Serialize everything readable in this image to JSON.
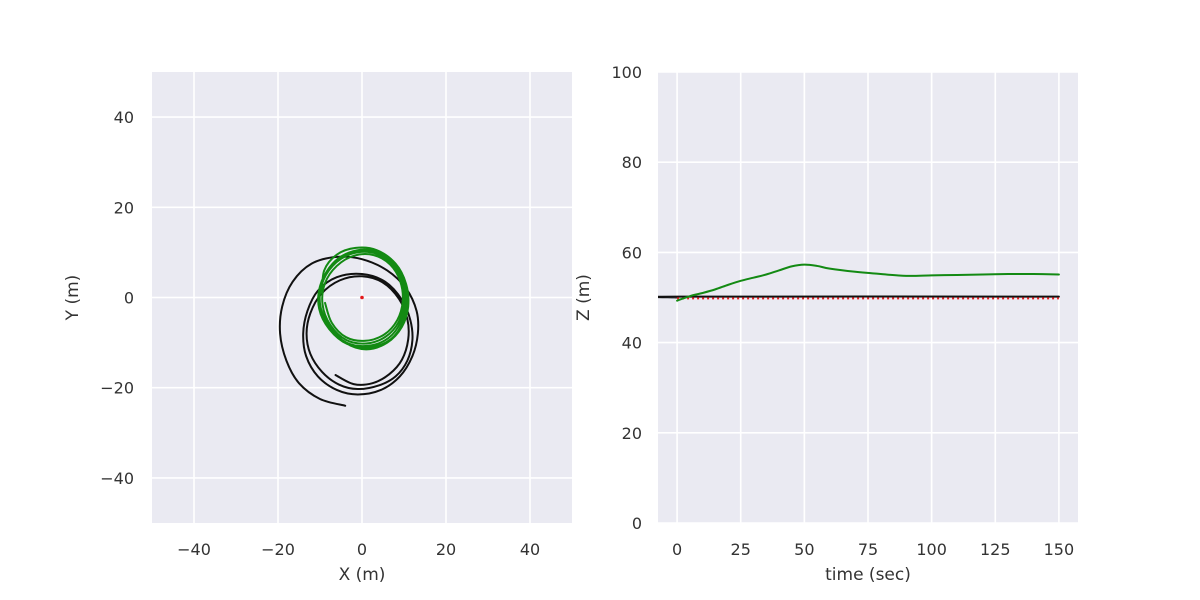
{
  "chart_data": [
    {
      "type": "line",
      "xlabel": "X (m)",
      "ylabel": "Y (m)",
      "xlim": [
        -50,
        50
      ],
      "ylim": [
        -50,
        50
      ],
      "xticks": [
        -40,
        -20,
        0,
        20,
        40
      ],
      "yticks": [
        -40,
        -20,
        0,
        20,
        40
      ],
      "x_tick_labels": [
        "−40",
        "−20",
        "0",
        "20",
        "40"
      ],
      "y_tick_labels": [
        "−40",
        "−20",
        "0",
        "20",
        "40"
      ],
      "grid": true,
      "legend": "none",
      "background_color": "#eaeaf2",
      "series": [
        {
          "color": "#111111",
          "style": "solid",
          "points": [
            [
              -4,
              -24
            ],
            [
              -10,
              -22.5
            ],
            [
              -15,
              -19
            ],
            [
              -18,
              -14
            ],
            [
              -19.5,
              -8
            ],
            [
              -19,
              -2
            ],
            [
              -16.5,
              3.5
            ],
            [
              -12,
              7.5
            ],
            [
              -6,
              9
            ],
            [
              0,
              8.5
            ],
            [
              6,
              6
            ],
            [
              10.5,
              2
            ],
            [
              13,
              -3
            ],
            [
              13.3,
              -8
            ],
            [
              12,
              -13
            ],
            [
              9,
              -17.5
            ],
            [
              4.5,
              -20.5
            ],
            [
              -1,
              -21.5
            ],
            [
              -6,
              -20.5
            ],
            [
              -10.5,
              -17.5
            ],
            [
              -13.3,
              -13
            ],
            [
              -14,
              -8
            ],
            [
              -13,
              -3
            ],
            [
              -10.5,
              1.5
            ],
            [
              -6,
              4.5
            ],
            [
              0,
              5.2
            ],
            [
              5.5,
              3.5
            ],
            [
              9.5,
              -0.5
            ],
            [
              11.5,
              -5
            ],
            [
              12,
              -9.5
            ],
            [
              10.8,
              -14
            ],
            [
              8,
              -17.5
            ],
            [
              4,
              -19.5
            ],
            [
              -1,
              -20.3
            ],
            [
              -5.5,
              -19.3
            ],
            [
              -9.5,
              -16.5
            ],
            [
              -12.3,
              -12.5
            ],
            [
              -13.2,
              -8
            ],
            [
              -12.3,
              -3.5
            ],
            [
              -9.7,
              0.8
            ],
            [
              -5.3,
              3.8
            ],
            [
              0,
              4.7
            ],
            [
              5,
              3.3
            ],
            [
              8.8,
              -0.3
            ],
            [
              10.8,
              -4.8
            ],
            [
              11,
              -9.3
            ],
            [
              9.5,
              -13.8
            ],
            [
              6.5,
              -17
            ],
            [
              2.5,
              -19
            ],
            [
              -2,
              -19.2
            ],
            [
              -6.3,
              -17.2
            ]
          ]
        },
        {
          "color": "#138a13",
          "style": "solid",
          "points": [
            [
              -9.5,
              0.8
            ],
            [
              -9,
              6
            ],
            [
              -6,
              9.5
            ],
            [
              -1.5,
              11
            ],
            [
              3.5,
              10.5
            ],
            [
              8,
              7.5
            ],
            [
              10.5,
              3
            ],
            [
              11,
              -2
            ],
            [
              9.5,
              -6.5
            ],
            [
              6,
              -10
            ],
            [
              1,
              -11.5
            ],
            [
              -4,
              -10
            ],
            [
              -8,
              -6
            ],
            [
              -10,
              -1.5
            ],
            [
              -9.5,
              3.5
            ],
            [
              -7,
              7.5
            ],
            [
              -3,
              10
            ],
            [
              2,
              10.5
            ],
            [
              6.5,
              8.5
            ],
            [
              9.5,
              4.5
            ],
            [
              10.7,
              -0.5
            ],
            [
              9.7,
              -5.5
            ],
            [
              6.8,
              -9.3
            ],
            [
              2,
              -11
            ],
            [
              -3.5,
              -10.3
            ],
            [
              -7.8,
              -7
            ],
            [
              -10.2,
              -2.5
            ],
            [
              -10,
              2.5
            ],
            [
              -7.5,
              6.8
            ],
            [
              -3.5,
              9.5
            ],
            [
              1.5,
              10.2
            ],
            [
              6.3,
              8.3
            ],
            [
              9.4,
              4.2
            ],
            [
              10.4,
              -0.5
            ],
            [
              9.3,
              -5.3
            ],
            [
              6.3,
              -9
            ],
            [
              1.5,
              -10.7
            ],
            [
              -3.7,
              -10
            ],
            [
              -7.8,
              -6.5
            ],
            [
              -9.9,
              -2
            ],
            [
              -9.6,
              2.8
            ],
            [
              -7,
              7
            ],
            [
              -2.8,
              9.6
            ],
            [
              2.2,
              10
            ],
            [
              6.5,
              8
            ],
            [
              9.3,
              4
            ],
            [
              10,
              -0.7
            ],
            [
              8.8,
              -5.3
            ],
            [
              5.6,
              -8.7
            ],
            [
              1,
              -10.2
            ],
            [
              -3.8,
              -9.4
            ],
            [
              -7.6,
              -6
            ],
            [
              -9.4,
              -1.5
            ],
            [
              -8.8,
              3.2
            ],
            [
              -6,
              7
            ],
            [
              -1.8,
              9.3
            ],
            [
              2.8,
              9.4
            ],
            [
              6.7,
              7.3
            ],
            [
              9.1,
              3.6
            ],
            [
              9.7,
              -0.8
            ],
            [
              8.4,
              -5
            ],
            [
              5.3,
              -8.2
            ],
            [
              0.8,
              -9.6
            ],
            [
              -3.8,
              -8.8
            ],
            [
              -7.2,
              -5.6
            ],
            [
              -8.8,
              -1.2
            ]
          ]
        }
      ],
      "markers": [
        {
          "x": 0,
          "y": 0,
          "color": "#e41a1c",
          "shape": "point"
        }
      ]
    },
    {
      "type": "line",
      "xlabel": "time (sec)",
      "ylabel": "Z (m)",
      "xlim": [
        -7.5,
        157.5
      ],
      "ylim": [
        0,
        100
      ],
      "xticks": [
        0,
        25,
        50,
        75,
        100,
        125,
        150
      ],
      "yticks": [
        0,
        20,
        40,
        60,
        80,
        100
      ],
      "x_tick_labels": [
        "0",
        "25",
        "50",
        "75",
        "100",
        "125",
        "150"
      ],
      "y_tick_labels": [
        "0",
        "20",
        "40",
        "60",
        "80",
        "100"
      ],
      "grid": true,
      "legend": "none",
      "background_color": "#eaeaf2",
      "series": [
        {
          "color": "#111111",
          "style": "solid",
          "x": [
            0,
            1,
            150
          ],
          "y": [
            50,
            50.2,
            50.2
          ]
        },
        {
          "color": "#e41a1c",
          "style": "dotted",
          "x": [
            0,
            150
          ],
          "y": [
            49.8,
            49.8
          ]
        },
        {
          "color": "#138a13",
          "style": "solid",
          "x": [
            0,
            5,
            10,
            15,
            20,
            25,
            30,
            35,
            40,
            45,
            50,
            55,
            60,
            70,
            80,
            90,
            100,
            110,
            120,
            130,
            140,
            150
          ],
          "y": [
            49.3,
            50.3,
            51,
            51.8,
            52.8,
            53.7,
            54.4,
            55.1,
            56,
            56.9,
            57.3,
            57,
            56.4,
            55.7,
            55.2,
            54.8,
            54.9,
            55,
            55.1,
            55.2,
            55.2,
            55.1
          ]
        }
      ]
    }
  ]
}
